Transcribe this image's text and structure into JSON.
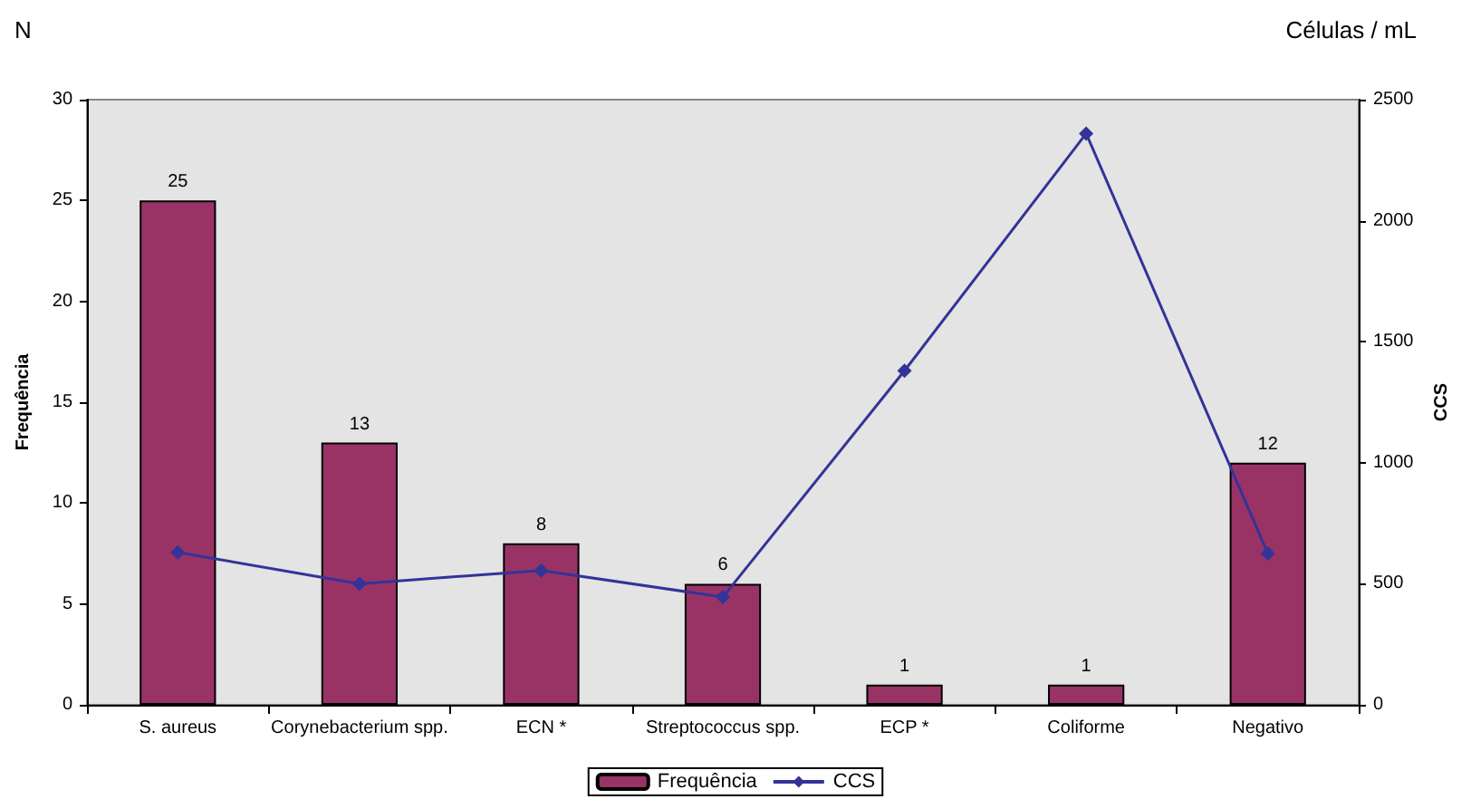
{
  "chart_data": {
    "type": "bar",
    "categories": [
      "S. aureus",
      "Corynebacterium spp.",
      "ECN *",
      "Streptococcus spp.",
      "ECP *",
      "Coliforme",
      "Negativo"
    ],
    "series": [
      {
        "name": "Frequência",
        "color": "#993366",
        "values": [
          25,
          13,
          8,
          6,
          1,
          1,
          12
        ],
        "data_labels": true
      },
      {
        "name": "CCS",
        "type": "line",
        "axis": "y2",
        "color": "#333399",
        "marker": "diamond",
        "values": [
          630,
          500,
          555,
          445,
          1380,
          2360,
          625
        ]
      }
    ],
    "ylabel": "Frequência",
    "y2label": "CCS",
    "ylim": [
      0,
      30
    ],
    "yticks": [
      0,
      5,
      10,
      15,
      20,
      25,
      30
    ],
    "y2lim": [
      0,
      2500
    ],
    "y2ticks": [
      0,
      500,
      1000,
      1500,
      2000,
      2500
    ],
    "annotations": [
      "N",
      "Células / mL"
    ],
    "legend": "bottom",
    "grid": false
  }
}
